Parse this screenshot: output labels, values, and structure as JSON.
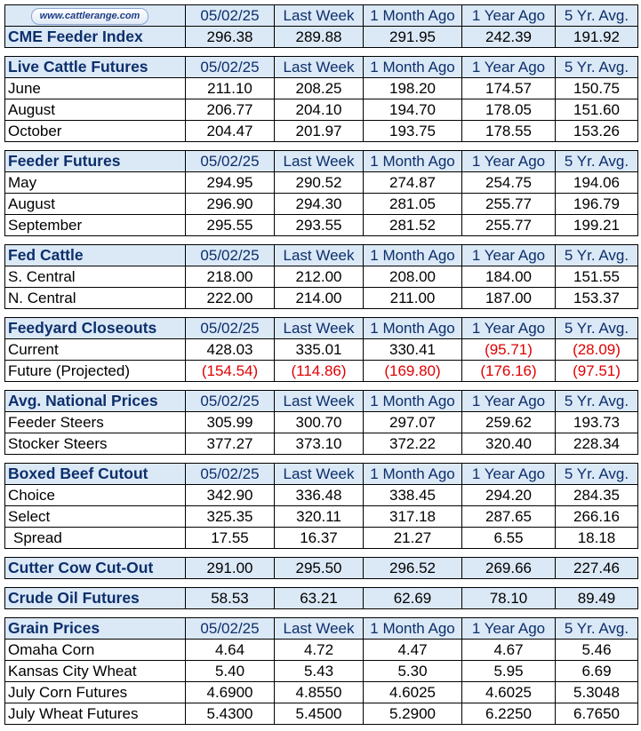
{
  "columns": [
    "05/02/25",
    "Last Week",
    "1 Month Ago",
    "1 Year Ago",
    "5 Yr. Avg."
  ],
  "logo_text": "www.cattlerange.com",
  "sections": [
    {
      "title": "CME Feeder Index",
      "header_has_values": true,
      "values": [
        "296.38",
        "289.88",
        "291.95",
        "242.39",
        "191.92"
      ],
      "rows": []
    },
    {
      "title": "Live Cattle Futures",
      "rows": [
        {
          "label": "June",
          "values": [
            "211.10",
            "208.25",
            "198.20",
            "174.57",
            "150.75"
          ]
        },
        {
          "label": "August",
          "values": [
            "206.77",
            "204.10",
            "194.70",
            "178.05",
            "151.60"
          ]
        },
        {
          "label": "October",
          "values": [
            "204.47",
            "201.97",
            "193.75",
            "178.55",
            "153.26"
          ]
        }
      ]
    },
    {
      "title": "Feeder Futures",
      "rows": [
        {
          "label": "May",
          "values": [
            "294.95",
            "290.52",
            "274.87",
            "254.75",
            "194.06"
          ]
        },
        {
          "label": "August",
          "values": [
            "296.90",
            "294.30",
            "281.05",
            "255.77",
            "196.79"
          ]
        },
        {
          "label": "September",
          "values": [
            "295.55",
            "293.55",
            "281.52",
            "255.77",
            "199.21"
          ]
        }
      ]
    },
    {
      "title": "Fed Cattle",
      "rows": [
        {
          "label": "S. Central",
          "values": [
            "218.00",
            "212.00",
            "208.00",
            "184.00",
            "151.55"
          ]
        },
        {
          "label": "N. Central",
          "values": [
            "222.00",
            "214.00",
            "211.00",
            "187.00",
            "153.37"
          ]
        }
      ]
    },
    {
      "title": "Feedyard Closeouts",
      "rows": [
        {
          "label": "Current",
          "values": [
            "428.03",
            "335.01",
            "330.41",
            "(95.71)",
            "(28.09)"
          ]
        },
        {
          "label": "Future (Projected)",
          "values": [
            "(154.54)",
            "(114.86)",
            "(169.80)",
            "(176.16)",
            "(97.51)"
          ]
        }
      ]
    },
    {
      "title": "Avg. National Prices",
      "rows": [
        {
          "label": "Feeder Steers",
          "values": [
            "305.99",
            "300.70",
            "297.07",
            "259.62",
            "193.73"
          ]
        },
        {
          "label": "Stocker Steers",
          "values": [
            "377.27",
            "373.10",
            "372.22",
            "320.40",
            "228.34"
          ]
        }
      ]
    },
    {
      "title": "Boxed Beef Cutout",
      "rows": [
        {
          "label": "Choice",
          "values": [
            "342.90",
            "336.48",
            "338.45",
            "294.20",
            "284.35"
          ]
        },
        {
          "label": "Select",
          "values": [
            "325.35",
            "320.11",
            "317.18",
            "287.65",
            "266.16"
          ]
        },
        {
          "label": "Spread",
          "indent": true,
          "values": [
            "17.55",
            "16.37",
            "21.27",
            "6.55",
            "18.18"
          ]
        }
      ]
    },
    {
      "title": "Cutter Cow Cut-Out",
      "header_has_values": true,
      "values": [
        "291.00",
        "295.50",
        "296.52",
        "269.66",
        "227.46"
      ],
      "rows": []
    },
    {
      "title": "Crude Oil Futures",
      "header_has_values": true,
      "values": [
        "58.53",
        "63.21",
        "62.69",
        "78.10",
        "89.49"
      ],
      "rows": []
    },
    {
      "title": "Grain Prices",
      "rows": [
        {
          "label": "Omaha Corn",
          "values": [
            "4.64",
            "4.72",
            "4.47",
            "4.67",
            "5.46"
          ]
        },
        {
          "label": "Kansas City Wheat",
          "values": [
            "5.40",
            "5.43",
            "5.30",
            "5.95",
            "6.69"
          ]
        },
        {
          "label": "July Corn Futures",
          "values": [
            "4.6900",
            "4.8550",
            "4.6025",
            "4.6025",
            "5.3048"
          ]
        },
        {
          "label": "July Wheat Futures",
          "values": [
            "5.4300",
            "5.4500",
            "5.2900",
            "6.2250",
            "6.7650"
          ]
        }
      ]
    }
  ]
}
